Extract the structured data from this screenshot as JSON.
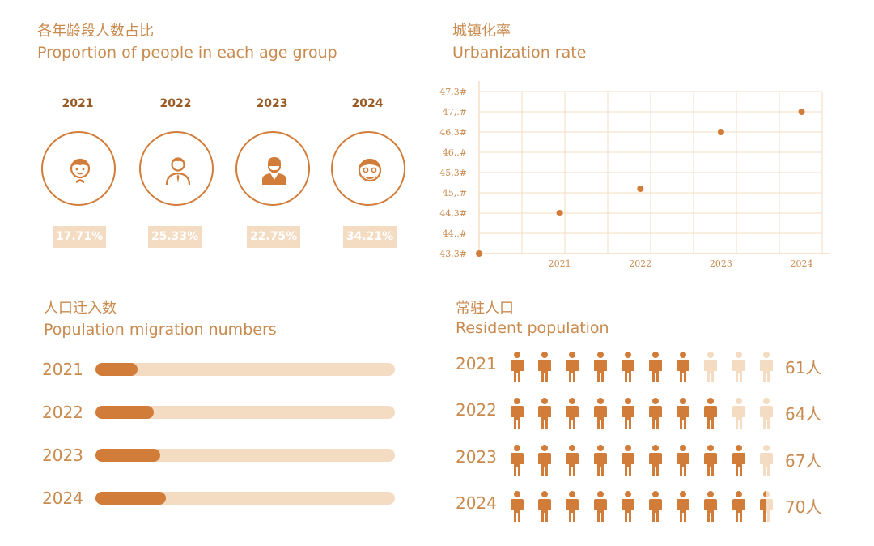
{
  "colors": {
    "accent": "#d27c3a",
    "light": "#f4dcc2",
    "text": "#c98a4e",
    "dark": "#9a5a24"
  },
  "age_section": {
    "title_cn": "各年龄段人数占比",
    "title_en": "Proportion of people in each age group",
    "groups": [
      {
        "year": "2021",
        "value": "17.71%",
        "icon": "child-icon"
      },
      {
        "year": "2022",
        "value": "25.33%",
        "icon": "young-man-icon"
      },
      {
        "year": "2023",
        "value": "22.75%",
        "icon": "businessman-icon"
      },
      {
        "year": "2024",
        "value": "34.21%",
        "icon": "elderly-icon"
      }
    ]
  },
  "urban_section": {
    "title_cn": "城镇化率",
    "title_en": "Urbanization rate"
  },
  "migration_section": {
    "title_cn": "人口迁入数",
    "title_en": "Population migration numbers"
  },
  "resident_section": {
    "title_cn": "常驻人口",
    "title_en": "Resident population"
  },
  "chart_data": [
    {
      "type": "scatter",
      "title": "Urbanization rate",
      "categories": [
        "",
        "2021",
        "2022",
        "2023",
        "2024"
      ],
      "values": [
        43.3,
        44.3,
        44.9,
        46.3,
        46.8
      ],
      "y_tick_labels": [
        "43,3#",
        "44,.#",
        "44,3#",
        "45,.#",
        "45,3#",
        "46,.#",
        "46,3#",
        "47,.#",
        "47,3#"
      ],
      "y_ticks": [
        43.3,
        43.8,
        44.3,
        44.8,
        45.3,
        45.8,
        46.3,
        46.8,
        47.3
      ],
      "ylim": [
        43.3,
        47.3
      ],
      "grid": true
    },
    {
      "type": "bar",
      "title": "Population migration numbers",
      "categories": [
        "2021",
        "2022",
        "2023",
        "2024"
      ],
      "values": [
        0.14,
        0.195,
        0.215,
        0.235
      ],
      "ylim": [
        0,
        1
      ]
    },
    {
      "type": "bar",
      "title": "Resident population",
      "categories": [
        "2021",
        "2022",
        "2023",
        "2024"
      ],
      "values": [
        61,
        64,
        67,
        70
      ],
      "value_labels": [
        "61人",
        "64人",
        "67人",
        "70人"
      ],
      "icons_total": 10,
      "icons_filled": [
        7,
        8,
        9,
        9.5
      ]
    }
  ]
}
